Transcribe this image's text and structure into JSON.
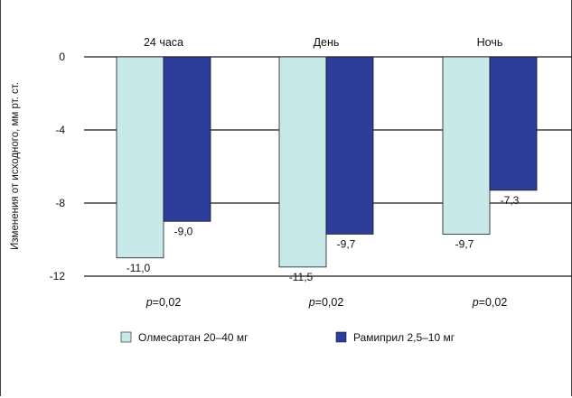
{
  "chart_data": {
    "type": "bar",
    "ylabel": "Изменения от исходного, мм рт. ст.",
    "ylim": [
      -12,
      0
    ],
    "yticks": [
      0,
      -4,
      -8,
      -12
    ],
    "ytick_labels": [
      "0",
      "-4",
      "-8",
      "-12"
    ],
    "grid": "horizontal",
    "categories": [
      "24 часа",
      "День",
      "Ночь"
    ],
    "series": [
      {
        "name": "Олмесартан 20–40 мг",
        "color": "#c8e9ea",
        "values": [
          -11.0,
          -11.5,
          -9.7
        ],
        "labels": [
          "-11,0",
          "-11,5",
          "-9,7"
        ]
      },
      {
        "name": "Рамиприл 2,5–10 мг",
        "color": "#2e3c9a",
        "values": [
          -9.0,
          -9.7,
          -7.3
        ],
        "labels": [
          "-9,0",
          "-9,7",
          "-7,3"
        ]
      }
    ],
    "pvalues": [
      {
        "p": "p",
        "rest": "=0,02"
      },
      {
        "p": "p",
        "rest": "=0,02"
      },
      {
        "p": "p",
        "rest": "=0,02"
      }
    ],
    "legend_position": "bottom"
  }
}
